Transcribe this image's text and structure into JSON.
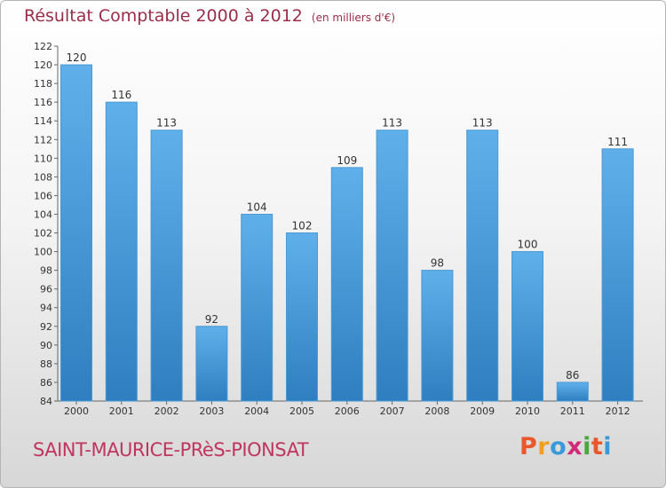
{
  "title": "Résultat Comptable 2000 à 2012",
  "unit_note": "(en milliers d'€)",
  "commune": "SAINT-MAURICE-PRèS-PIONSAT",
  "logo_text": "Proxiti",
  "colors": {
    "title": "#9b2d4b",
    "commune": "#c0355f",
    "bar_top": "#5fb0ea",
    "bar_bottom": "#2f7fc0",
    "logo": [
      "#e8582a",
      "#f0a020",
      "#3a9ad9",
      "#d02a78",
      "#4aa83c",
      "#e8582a",
      "#3a9ad9"
    ]
  },
  "chart_data": {
    "type": "bar",
    "title": "Résultat Comptable 2000 à 2012",
    "xlabel": "",
    "ylabel": "",
    "categories": [
      "2000",
      "2001",
      "2002",
      "2003",
      "2004",
      "2005",
      "2006",
      "2007",
      "2008",
      "2009",
      "2010",
      "2011",
      "2012"
    ],
    "values": [
      120,
      116,
      113,
      92,
      104,
      102,
      109,
      113,
      98,
      113,
      100,
      86,
      111
    ],
    "ylim": [
      84,
      122
    ],
    "yticks": [
      84,
      86,
      88,
      90,
      92,
      94,
      96,
      98,
      100,
      102,
      104,
      106,
      108,
      110,
      112,
      114,
      116,
      118,
      120,
      122
    ],
    "grid": false,
    "legend": "none"
  }
}
